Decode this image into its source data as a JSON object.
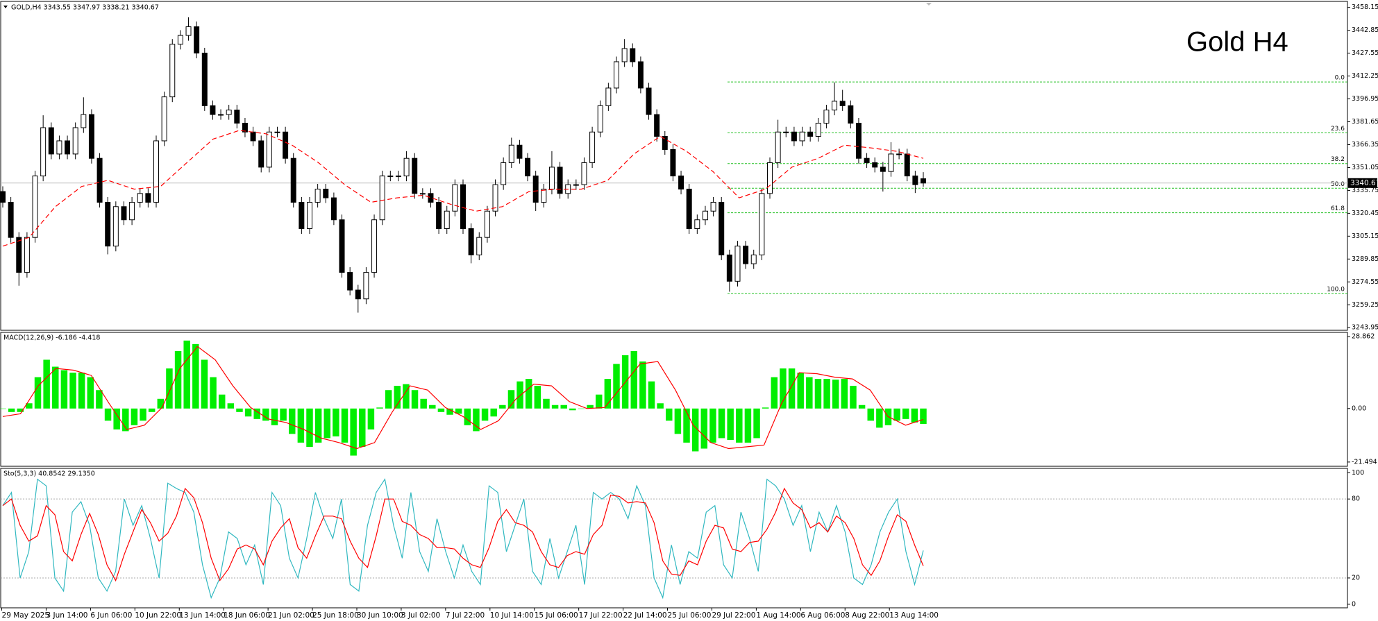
{
  "chart_data": [
    {
      "type": "candlestick",
      "title": "GOLD,H4 3343.55 3347.97 3338.21 3340.67",
      "annotation": "Gold H4",
      "open": [
        3335.0,
        3327.8,
        3304.3,
        3280.9,
        3304.3,
        3345.4,
        3377.7,
        3360.1,
        3368.9,
        3360.1,
        3377.7,
        3386.5,
        3357.2,
        3327.8,
        3298.5,
        3324.9,
        3316.1,
        3327.8,
        3333.7,
        3327.8,
        3368.9,
        3398.3,
        3433.5,
        3439.4,
        3445.2,
        3427.6,
        3392.4,
        3386.5,
        3386.5,
        3389.5,
        3380.7,
        3374.8,
        3368.9,
        3351.3,
        3374.8,
        3374.8,
        3357.2,
        3327.8,
        3310.2,
        3327.8,
        3336.6,
        3330.8,
        3316.1,
        3280.9,
        3269.1,
        3263.2,
        3280.9,
        3316.1,
        3345.4,
        3345.4,
        3345.4,
        3357.2,
        3333.7,
        3333.7,
        3327.8,
        3310.2,
        3321.9,
        3339.6,
        3310.2,
        3292.6,
        3304.3,
        3321.9,
        3339.6,
        3354.3,
        3366.0,
        3357.2,
        3345.4,
        3327.8,
        3336.6,
        3351.3,
        3333.7,
        3339.6,
        3339.6,
        3354.3,
        3374.8,
        3392.4,
        3404.2,
        3421.8,
        3430.6,
        3421.8,
        3404.2,
        3386.5,
        3371.9,
        3363.1,
        3345.4,
        3336.6,
        3310.2,
        3316.1,
        3321.9,
        3327.8,
        3292.6,
        3275.0,
        3298.5,
        3286.7,
        3292.6,
        3333.7,
        3354.3,
        3374.8,
        3374.8,
        3368.9,
        3374.8,
        3371.9,
        3380.7,
        3389.5,
        3395.4,
        3392.4,
        3380.7,
        3357.2,
        3354.3,
        3351.3,
        3348.4,
        3360.1,
        3360.1,
        3345.4,
        3343.55
      ],
      "high": [
        3338.5,
        3331.3,
        3307.8,
        3307.8,
        3348.9,
        3386.0,
        3381.2,
        3372.4,
        3372.4,
        3381.2,
        3398.0,
        3390.0,
        3360.7,
        3331.3,
        3328.4,
        3328.4,
        3331.3,
        3337.2,
        3337.2,
        3372.4,
        3401.8,
        3437.0,
        3442.9,
        3451.5,
        3448.7,
        3431.1,
        3395.9,
        3390.0,
        3393.0,
        3393.0,
        3384.2,
        3378.3,
        3372.4,
        3378.3,
        3378.3,
        3378.3,
        3360.7,
        3331.3,
        3331.3,
        3340.1,
        3340.1,
        3334.3,
        3319.6,
        3284.4,
        3272.6,
        3284.4,
        3319.6,
        3348.9,
        3348.9,
        3348.9,
        3362.0,
        3360.7,
        3337.2,
        3337.2,
        3331.3,
        3325.4,
        3343.1,
        3343.1,
        3313.7,
        3307.8,
        3325.4,
        3343.1,
        3357.8,
        3371.0,
        3369.5,
        3360.7,
        3348.9,
        3340.1,
        3362.0,
        3354.8,
        3343.1,
        3343.1,
        3357.8,
        3378.3,
        3395.9,
        3407.7,
        3425.3,
        3437.0,
        3434.1,
        3425.3,
        3407.7,
        3390.0,
        3375.4,
        3366.6,
        3348.9,
        3340.1,
        3319.6,
        3325.4,
        3331.3,
        3331.3,
        3296.1,
        3302.0,
        3302.0,
        3296.1,
        3337.2,
        3357.8,
        3383.0,
        3378.3,
        3378.3,
        3378.3,
        3378.3,
        3384.2,
        3393.0,
        3408.0,
        3403.0,
        3395.9,
        3384.2,
        3360.7,
        3357.8,
        3354.8,
        3368.0,
        3363.6,
        3363.6,
        3348.9,
        3347.97
      ],
      "low": [
        3324.3,
        3300.8,
        3272.0,
        3277.4,
        3300.8,
        3341.9,
        3356.6,
        3356.6,
        3356.6,
        3356.6,
        3374.2,
        3353.7,
        3324.3,
        3293.0,
        3295.0,
        3312.6,
        3312.6,
        3324.3,
        3324.3,
        3324.3,
        3365.4,
        3394.8,
        3430.0,
        3435.9,
        3424.1,
        3388.9,
        3383.0,
        3383.0,
        3383.0,
        3377.2,
        3371.3,
        3365.4,
        3347.8,
        3347.8,
        3371.3,
        3353.7,
        3324.3,
        3306.7,
        3306.7,
        3324.3,
        3327.3,
        3312.6,
        3277.4,
        3265.6,
        3254.0,
        3259.7,
        3277.4,
        3312.6,
        3341.9,
        3341.9,
        3341.9,
        3330.2,
        3330.2,
        3324.3,
        3306.7,
        3306.7,
        3318.4,
        3306.7,
        3287.0,
        3289.1,
        3300.8,
        3318.4,
        3336.1,
        3350.8,
        3353.7,
        3341.9,
        3322.0,
        3324.3,
        3333.1,
        3330.2,
        3330.2,
        3336.1,
        3336.1,
        3350.8,
        3371.3,
        3388.9,
        3400.7,
        3418.3,
        3418.3,
        3400.7,
        3383.0,
        3368.4,
        3359.6,
        3341.9,
        3333.1,
        3306.7,
        3306.7,
        3312.6,
        3318.4,
        3289.1,
        3268.0,
        3271.5,
        3283.2,
        3283.2,
        3289.1,
        3330.2,
        3350.8,
        3371.3,
        3365.4,
        3365.4,
        3368.4,
        3368.4,
        3377.2,
        3386.0,
        3388.9,
        3377.2,
        3353.7,
        3350.8,
        3347.8,
        3335.0,
        3344.9,
        3356.6,
        3341.9,
        3334.0,
        3338.21
      ],
      "close": [
        3327.8,
        3304.3,
        3280.9,
        3304.3,
        3345.4,
        3377.7,
        3360.1,
        3368.9,
        3360.1,
        3377.7,
        3386.5,
        3357.2,
        3327.8,
        3298.5,
        3324.9,
        3316.1,
        3327.8,
        3333.7,
        3327.8,
        3368.9,
        3398.3,
        3433.5,
        3439.4,
        3445.2,
        3427.6,
        3392.4,
        3386.5,
        3386.5,
        3389.5,
        3380.7,
        3374.8,
        3368.9,
        3351.3,
        3374.8,
        3374.8,
        3357.2,
        3327.8,
        3310.2,
        3327.8,
        3336.6,
        3330.8,
        3316.1,
        3280.9,
        3269.1,
        3263.2,
        3280.9,
        3316.1,
        3345.4,
        3345.4,
        3345.4,
        3357.2,
        3333.7,
        3333.7,
        3327.8,
        3310.2,
        3321.9,
        3339.6,
        3310.2,
        3292.6,
        3304.3,
        3321.9,
        3339.6,
        3354.3,
        3366.0,
        3357.2,
        3345.4,
        3327.8,
        3336.6,
        3351.3,
        3333.7,
        3339.6,
        3339.6,
        3354.3,
        3374.8,
        3392.4,
        3404.2,
        3421.8,
        3430.6,
        3421.8,
        3404.2,
        3386.5,
        3371.9,
        3363.1,
        3345.4,
        3336.6,
        3310.2,
        3316.1,
        3321.9,
        3327.8,
        3292.6,
        3275.0,
        3298.5,
        3286.7,
        3292.6,
        3333.7,
        3354.3,
        3374.8,
        3374.8,
        3368.9,
        3374.8,
        3371.9,
        3380.7,
        3389.5,
        3395.4,
        3392.4,
        3380.7,
        3357.2,
        3354.3,
        3351.3,
        3348.4,
        3360.1,
        3360.1,
        3345.4,
        3339.6,
        3340.67
      ],
      "up_color": "#ffffff",
      "down_color": "#000000",
      "moving_average": {
        "color": "#ff0000",
        "values": [
          3298.5,
          3304.3,
          3324.9,
          3338.4,
          3342.5,
          3336.6,
          3338.4,
          3354.3,
          3370.1,
          3375.9,
          3373.6,
          3366.0,
          3354.3,
          3339.6,
          3327.8,
          3330.8,
          3332.5,
          3326.6,
          3321.9,
          3324.9,
          3334.9,
          3336.6,
          3336.6,
          3342.5,
          3360.1,
          3371.9,
          3361.9,
          3348.4,
          3330.8,
          3336.6,
          3351.3,
          3357.2,
          3366.0,
          3364.2,
          3361.9,
          3357.2
        ]
      },
      "fib_color": "#22c022",
      "fib_levels": [
        {
          "label": "0.0",
          "value": 3408.3
        },
        {
          "label": "23.6",
          "value": 3374.2
        },
        {
          "label": "38.2",
          "value": 3353.7
        },
        {
          "label": "50.0",
          "value": 3337.2
        },
        {
          "label": "61.8",
          "value": 3320.8
        },
        {
          "label": "100.0",
          "value": 3266.8
        }
      ],
      "current_price": 3340.67,
      "ylim": [
        3242.2,
        3461.7
      ],
      "yticks": [
        3458.15,
        3442.85,
        3427.55,
        3412.25,
        3396.95,
        3381.65,
        3366.35,
        3351.05,
        3335.75,
        3320.45,
        3305.15,
        3289.85,
        3274.55,
        3259.25,
        3243.95
      ],
      "time_labels": [
        "29 May 2025",
        "3 Jun 14:00",
        "6 Jun 06:00",
        "10 Jun 22:00",
        "13 Jun 14:00",
        "18 Jun 06:00",
        "21 Jun 02:00",
        "25 Jun 18:00",
        "30 Jun 10:00",
        "3 Jul 02:00",
        "7 Jul 22:00",
        "10 Jul 14:00",
        "15 Jul 06:00",
        "17 Jul 22:00",
        "22 Jul 14:00",
        "25 Jul 06:00",
        "29 Jul 22:00",
        "1 Aug 14:00",
        "6 Aug 06:00",
        "8 Aug 22:00",
        "13 Aug 14:00"
      ]
    },
    {
      "type": "macd",
      "title": "MACD(12,26,9) -6.186 -4.418",
      "histogram": {
        "color": "#00ee00",
        "values": [
          0,
          -1.4,
          -1.4,
          2.1,
          12.6,
          19.6,
          16.8,
          15.4,
          14.4,
          14.4,
          12.6,
          7.4,
          -4.9,
          -8.4,
          -9.1,
          -6.7,
          -4.9,
          -1.4,
          3.9,
          16.1,
          23.1,
          27.3,
          25.9,
          19.6,
          12.6,
          5.6,
          2.1,
          -1.4,
          -3.2,
          -4.2,
          -4.9,
          -6.7,
          -4.9,
          -10.2,
          -13.7,
          -15.4,
          -13.7,
          -11.9,
          -11.2,
          -13.7,
          -18.9,
          -15.4,
          -8.4,
          0.4,
          7.4,
          9.1,
          9.8,
          7.4,
          3.9,
          1.4,
          -1.4,
          -2.5,
          -2.1,
          -6.7,
          -9.1,
          -4.9,
          -3.2,
          1.4,
          7.4,
          10.9,
          11.9,
          9.1,
          3.9,
          1.4,
          1.4,
          -0.7,
          0,
          1.4,
          5.6,
          11.9,
          17.9,
          21.4,
          23.1,
          18.9,
          10.9,
          2.1,
          -4.9,
          -10.2,
          -13.7,
          -17.2,
          -16.1,
          -13.7,
          -11.9,
          -12.6,
          -13.7,
          -13.7,
          -11.9,
          0.4,
          12.6,
          16.1,
          16.1,
          14.4,
          12.6,
          11.9,
          11.9,
          11.6,
          11.9,
          9.1,
          1.4,
          -4.9,
          -7.7,
          -6.7,
          -4.9,
          -4.2,
          -5.6,
          -6.186
        ]
      },
      "signal": {
        "color": "#ff0000",
        "values": [
          -3.2,
          -2.1,
          9.1,
          16.1,
          15.4,
          13.3,
          2.1,
          -8.4,
          -6.7,
          0.4,
          16.1,
          24.9,
          19.6,
          9.1,
          0.4,
          -4.2,
          -5.6,
          -8.4,
          -11.9,
          -13.7,
          -16.1,
          -13.7,
          -1.4,
          9.1,
          7.4,
          0.4,
          -3.2,
          -8.4,
          -4.9,
          3.9,
          9.8,
          9.1,
          2.8,
          0,
          0.4,
          9.1,
          17.9,
          18.9,
          7.4,
          -6.7,
          -13.7,
          -16.1,
          -15.4,
          -14.7,
          2.1,
          14.4,
          14.0,
          12.6,
          11.9,
          7.4,
          -3.2,
          -6.7,
          -4.418
        ]
      },
      "ylim": [
        -23.2,
        30.6
      ],
      "yticks": [
        28.862,
        {
          "value": 0,
          "label": "0.00"
        },
        -21.494
      ]
    },
    {
      "type": "stochastic",
      "title": "Sto(5,3,3) 40.8542 29.1350",
      "main": {
        "color": "#30b8c0",
        "values": [
          75,
          85,
          20,
          40,
          95,
          90,
          20,
          10,
          70,
          78,
          60,
          20,
          10,
          25,
          80,
          60,
          75,
          50,
          20,
          92,
          88,
          85,
          70,
          30,
          5,
          20,
          55,
          50,
          30,
          45,
          15,
          85,
          75,
          35,
          20,
          50,
          85,
          65,
          50,
          80,
          15,
          10,
          60,
          85,
          95,
          60,
          35,
          85,
          40,
          25,
          65,
          40,
          20,
          45,
          25,
          15,
          90,
          85,
          40,
          60,
          80,
          25,
          15,
          50,
          20,
          40,
          60,
          15,
          85,
          80,
          85,
          80,
          65,
          90,
          75,
          20,
          5,
          45,
          15,
          40,
          35,
          70,
          75,
          30,
          20,
          70,
          50,
          25,
          95,
          90,
          80,
          60,
          75,
          40,
          70,
          55,
          75,
          55,
          20,
          15,
          30,
          55,
          70,
          80,
          40,
          15,
          40.8542
        ]
      },
      "signal": {
        "color": "#ff0000",
        "values": [
          75,
          80,
          60,
          48,
          52,
          75,
          68,
          40,
          33,
          53,
          69,
          53,
          30,
          18,
          38,
          55,
          72,
          62,
          48,
          54,
          67,
          88,
          81,
          62,
          35,
          18,
          27,
          42,
          45,
          42,
          30,
          48,
          58,
          65,
          43,
          35,
          52,
          67,
          67,
          65,
          48,
          35,
          28,
          52,
          80,
          80,
          63,
          60,
          53,
          50,
          43,
          43,
          42,
          35,
          30,
          28,
          43,
          63,
          72,
          62,
          60,
          55,
          40,
          30,
          28,
          37,
          40,
          38,
          53,
          60,
          83,
          82,
          77,
          78,
          77,
          62,
          33,
          23,
          22,
          33,
          30,
          48,
          60,
          58,
          42,
          40,
          47,
          48,
          57,
          70,
          88,
          77,
          72,
          58,
          62,
          55,
          67,
          62,
          50,
          30,
          22,
          33,
          52,
          68,
          63,
          45,
          29.135
        ]
      },
      "levels": [
        80,
        20
      ],
      "ylim": [
        -2.7,
        103.3
      ],
      "yticks": [
        100,
        80,
        20,
        0
      ]
    }
  ]
}
